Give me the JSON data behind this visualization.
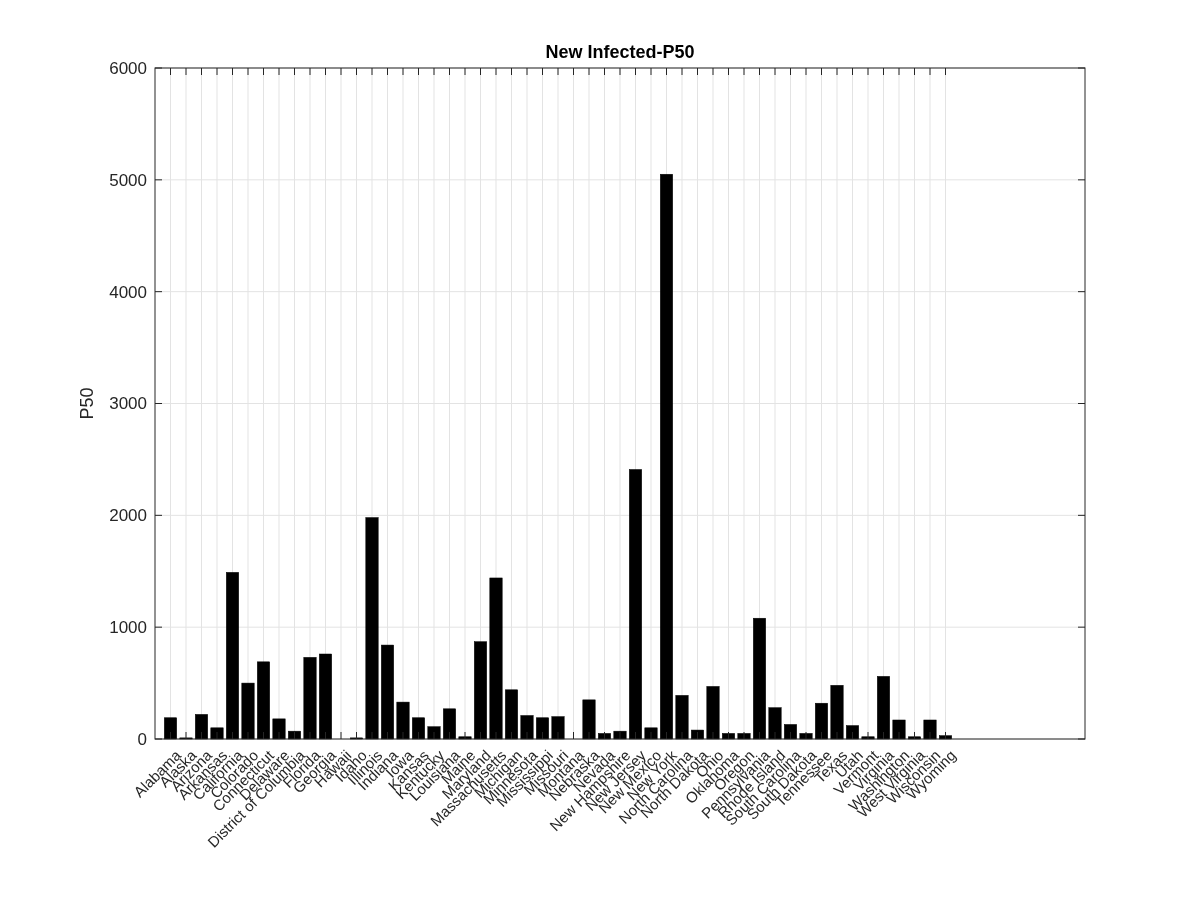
{
  "chart_data": {
    "type": "bar",
    "title": "New Infected-P50",
    "ylabel": "P50",
    "categories": [
      "Alabama",
      "Alaska",
      "Arizona",
      "Arkansas",
      "California",
      "Colorado",
      "Connecticut",
      "Delaware",
      "District of Columbia",
      "Florida",
      "Georgia",
      "Hawaii",
      "Idaho",
      "Illinois",
      "Indiana",
      "Iowa",
      "Kansas",
      "Kentucky",
      "Louisiana",
      "Maine",
      "Maryland",
      "Massachusetts",
      "Michigan",
      "Minnesota",
      "Mississippi",
      "Missouri",
      "Montana",
      "Nebraska",
      "Nevada",
      "New Hampshire",
      "New Jersey",
      "New Mexico",
      "New York",
      "North Carolina",
      "North Dakota",
      "Ohio",
      "Oklahoma",
      "Oregon",
      "Pennsylvania",
      "Rhode Island",
      "South Carolina",
      "South Dakota",
      "Tennessee",
      "Texas",
      "Utah",
      "Vermont",
      "Virginia",
      "Washington",
      "West Virginia",
      "Wisconsin",
      "Wyoming",
      null,
      null,
      null,
      null,
      null,
      null,
      null,
      null
    ],
    "values": [
      190,
      10,
      220,
      100,
      1490,
      500,
      690,
      180,
      70,
      730,
      760,
      0,
      10,
      1980,
      840,
      330,
      190,
      110,
      270,
      20,
      870,
      1440,
      440,
      210,
      190,
      200,
      0,
      350,
      50,
      70,
      2410,
      100,
      5050,
      390,
      80,
      470,
      50,
      50,
      1080,
      280,
      130,
      50,
      320,
      480,
      120,
      20,
      560,
      170,
      20,
      170,
      30,
      null,
      null,
      null,
      null,
      null,
      null,
      null,
      null
    ],
    "color": "#000000",
    "ylim": [
      0,
      6000
    ],
    "yticks": [
      0,
      1000,
      2000,
      3000,
      4000,
      5000,
      6000
    ],
    "grid": true
  }
}
